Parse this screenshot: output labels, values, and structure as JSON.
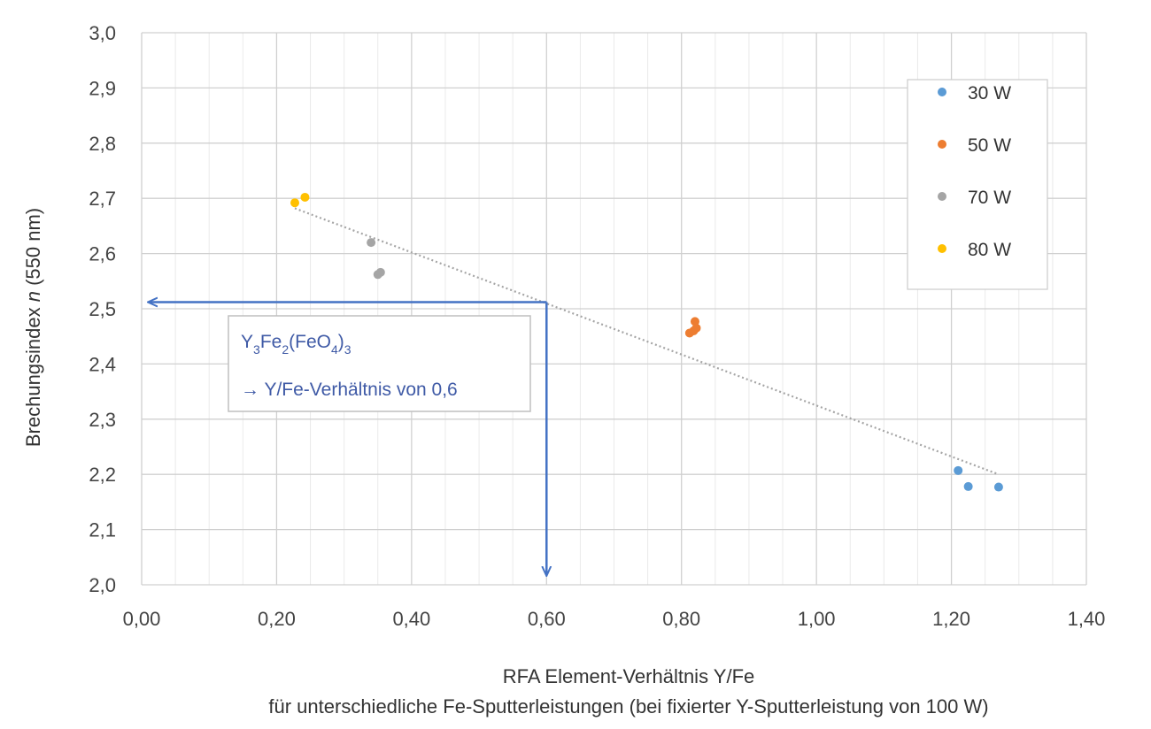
{
  "chart_data": {
    "type": "scatter",
    "title": "",
    "xlabel": "RFA Element-Verhältnis Y/Fe",
    "xlabel_line2": "für unterschiedliche Fe-Sputterleistungen (bei fixierter Y-Sputterleistung von 100 W)",
    "ylabel_prefix": "Brechungsindex ",
    "ylabel_italic": "n",
    "ylabel_suffix": " (550 nm)",
    "xlim": [
      0,
      1.4
    ],
    "ylim": [
      2.0,
      3.0
    ],
    "x_ticks": [
      0,
      0.2,
      0.4,
      0.6,
      0.8,
      1.0,
      1.2,
      1.4
    ],
    "x_tick_labels": [
      "0,00",
      "0,20",
      "0,40",
      "0,60",
      "0,80",
      "1,00",
      "1,20",
      "1,40"
    ],
    "y_ticks": [
      2.0,
      2.1,
      2.2,
      2.3,
      2.4,
      2.5,
      2.6,
      2.7,
      2.8,
      2.9,
      3.0
    ],
    "y_tick_labels": [
      "2,0",
      "2,1",
      "2,2",
      "2,3",
      "2,4",
      "2,5",
      "2,6",
      "2,7",
      "2,8",
      "2,9",
      "3,0"
    ],
    "grid": true,
    "legend_position": "top-right",
    "series": [
      {
        "name": "30 W",
        "color": "#5b9bd5",
        "x": [
          1.21,
          1.225,
          1.27
        ],
        "y": [
          2.207,
          2.178,
          2.177
        ]
      },
      {
        "name": "50 W",
        "color": "#ed7d31",
        "x": [
          0.812,
          0.818,
          0.822,
          0.82
        ],
        "y": [
          2.456,
          2.46,
          2.465,
          2.477
        ]
      },
      {
        "name": "70 W",
        "color": "#a5a5a5",
        "x": [
          0.34,
          0.35,
          0.354
        ],
        "y": [
          2.62,
          2.562,
          2.566
        ]
      },
      {
        "name": "80 W",
        "color": "#ffc000",
        "x": [
          0.227,
          0.242
        ],
        "y": [
          2.692,
          2.702
        ]
      }
    ],
    "trendline": {
      "color": "#a5a5a5",
      "x": [
        0.227,
        1.27
      ],
      "y": [
        2.682,
        2.2
      ]
    },
    "reference": {
      "color": "#4472c4",
      "x": 0.6,
      "y": 2.512
    },
    "annotation": {
      "formula": {
        "Y": "Y",
        "sub1": "3",
        "Fe": "Fe",
        "sub2": "2",
        "paren_open": "(FeO",
        "sub3": "4",
        "paren_close": ")",
        "sub4": "3"
      },
      "text": "→ Y/Fe-Verhältnis von 0,6"
    }
  }
}
